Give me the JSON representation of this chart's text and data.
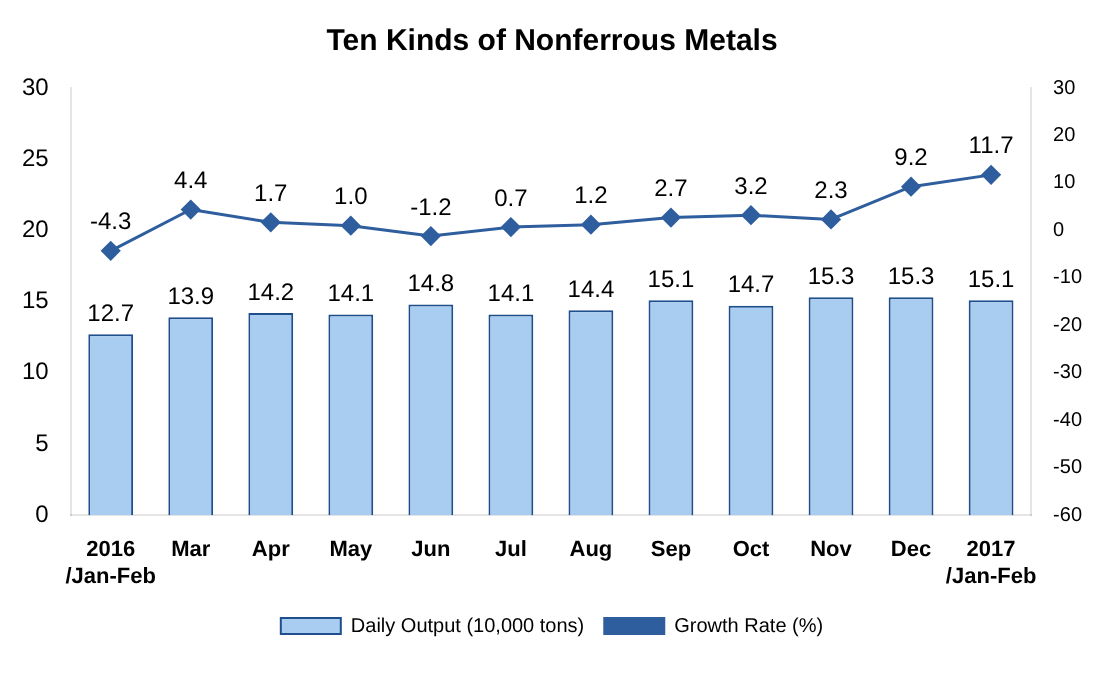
{
  "chart_data": {
    "type": "bar",
    "title": "Ten Kinds of Nonferrous Metals",
    "categories": [
      "2016\n/Jan-Feb",
      "Mar",
      "Apr",
      "May",
      "Jun",
      "Jul",
      "Aug",
      "Sep",
      "Oct",
      "Nov",
      "Dec",
      "2017\n/Jan-Feb"
    ],
    "series": [
      {
        "name": "Daily Output (10,000 tons)",
        "color": "#a9cdf0",
        "values": [
          12.7,
          13.9,
          14.2,
          14.1,
          14.8,
          14.1,
          14.4,
          15.1,
          14.7,
          15.3,
          15.3,
          15.1
        ]
      },
      {
        "name": "Growth Rate (%)",
        "type": "line",
        "axis": "y2",
        "color": "#2f5e9e",
        "marker": "diamond",
        "values": [
          -4.3,
          4.4,
          1.7,
          1.0,
          -1.2,
          0.7,
          1.2,
          2.7,
          3.2,
          2.3,
          9.2,
          11.7
        ],
        "value_labels": [
          "-4.3",
          "4.4",
          "1.7",
          "1.0",
          "-1.2",
          "0.7",
          "1.2",
          "2.7",
          "3.2",
          "2.3",
          "9.2",
          "11.7"
        ]
      }
    ],
    "ylim": [
      0,
      30
    ],
    "yticks": [
      0,
      5,
      10,
      15,
      20,
      25,
      30
    ],
    "y2lim": [
      -60,
      30
    ],
    "y2ticks": [
      -60,
      -50,
      -40,
      -30,
      -20,
      -10,
      0,
      10,
      20,
      30
    ],
    "data_labels": true,
    "grid": false,
    "legend": "bottom"
  }
}
